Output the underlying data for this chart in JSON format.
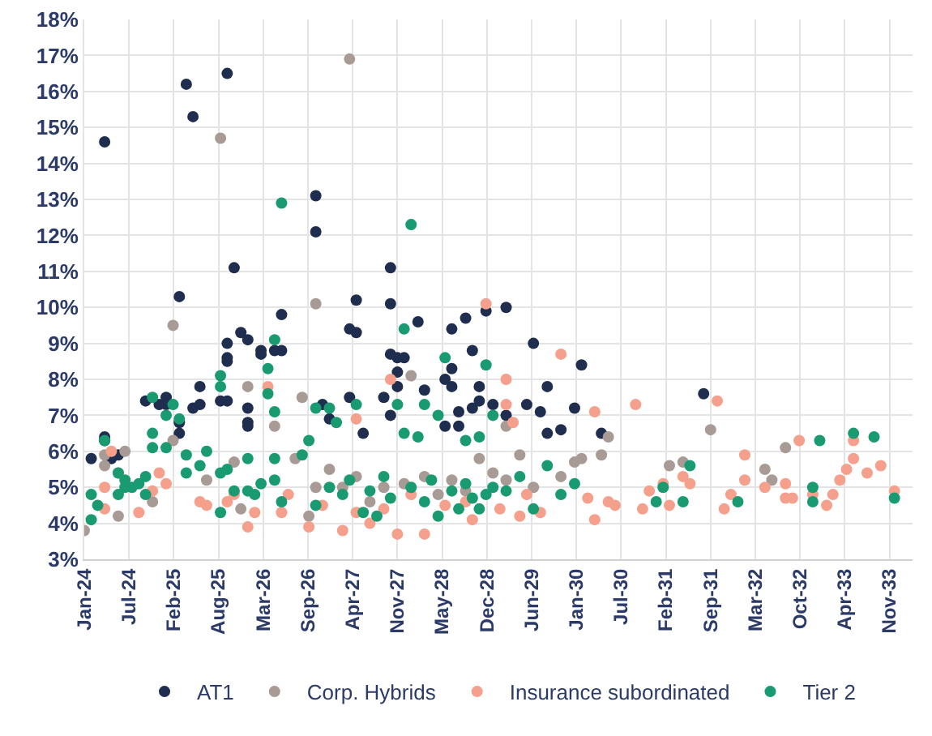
{
  "chart_data": {
    "type": "scatter",
    "marker": "circle",
    "grid": true,
    "legend": "bottom",
    "xlim": [
      "2024-01-01",
      "2034-02-20"
    ],
    "xticks": [
      {
        "value": "2024-01-01",
        "label": "Jan-24"
      },
      {
        "value": "2024-07-19",
        "label": "Jul-24"
      },
      {
        "value": "2025-02-04",
        "label": "Feb-25"
      },
      {
        "value": "2025-08-23",
        "label": "Aug-25"
      },
      {
        "value": "2026-03-11",
        "label": "Mar-26"
      },
      {
        "value": "2026-09-27",
        "label": "Sep-26"
      },
      {
        "value": "2027-04-15",
        "label": "Apr-27"
      },
      {
        "value": "2027-11-01",
        "label": "Nov-27"
      },
      {
        "value": "2028-05-19",
        "label": "May-28"
      },
      {
        "value": "2028-12-05",
        "label": "Dec-28"
      },
      {
        "value": "2029-06-23",
        "label": "Jun-29"
      },
      {
        "value": "2030-01-09",
        "label": "Jan-30"
      },
      {
        "value": "2030-07-28",
        "label": "Jul-30"
      },
      {
        "value": "2031-02-13",
        "label": "Feb-31"
      },
      {
        "value": "2031-09-01",
        "label": "Sep-31"
      },
      {
        "value": "2032-03-19",
        "label": "Mar-32"
      },
      {
        "value": "2032-10-05",
        "label": "Oct-32"
      },
      {
        "value": "2033-04-23",
        "label": "Apr-33"
      },
      {
        "value": "2033-11-09",
        "label": "Nov-33"
      }
    ],
    "ylim": [
      3,
      18
    ],
    "yticks": [
      {
        "value": 3,
        "label": "3%"
      },
      {
        "value": 4,
        "label": "4%"
      },
      {
        "value": 5,
        "label": "5%"
      },
      {
        "value": 6,
        "label": "6%"
      },
      {
        "value": 7,
        "label": "7%"
      },
      {
        "value": 8,
        "label": "8%"
      },
      {
        "value": 9,
        "label": "9%"
      },
      {
        "value": 10,
        "label": "10%"
      },
      {
        "value": 11,
        "label": "11%"
      },
      {
        "value": 12,
        "label": "12%"
      },
      {
        "value": 13,
        "label": "13%"
      },
      {
        "value": 14,
        "label": "14%"
      },
      {
        "value": 15,
        "label": "15%"
      },
      {
        "value": 16,
        "label": "16%"
      },
      {
        "value": 17,
        "label": "17%"
      },
      {
        "value": 18,
        "label": "18%"
      }
    ],
    "series": [
      {
        "name": "AT1",
        "color": "#1f2d4e",
        "x": [
          "2024-02",
          "2024-04",
          "2025-04",
          "2025-05",
          "2025-10",
          "2025-11",
          "2026-11",
          "2026-11",
          "2027-10",
          "2027-05",
          "2027-10",
          "2028-12",
          "2029-03",
          "2027-04",
          "2027-05",
          "2028-02",
          "2028-07",
          "2028-09",
          "2029-07",
          "2030-02",
          "2027-10",
          "2027-11",
          "2027-12",
          "2027-11",
          "2027-11",
          "2028-03",
          "2028-06",
          "2028-07",
          "2028-10",
          "2028-07",
          "2028-11",
          "2029-09",
          "2026-12",
          "2027-01",
          "2027-04",
          "2027-09",
          "2027-10",
          "2027-06",
          "2028-08",
          "2028-10",
          "2028-11",
          "2029-01",
          "2029-03",
          "2029-06",
          "2029-08",
          "2030-01",
          "2028-06",
          "2028-08",
          "2029-09",
          "2029-11",
          "2030-05",
          "2031-08",
          "2024-04",
          "2024-04",
          "2024-05",
          "2024-06",
          "2025-03",
          "2024-10",
          "2024-12",
          "2025-01",
          "2025-01",
          "2025-03",
          "2025-03",
          "2025-05",
          "2025-06",
          "2025-06",
          "2025-09",
          "2025-10",
          "2025-10",
          "2025-10",
          "2025-10",
          "2025-12",
          "2026-01",
          "2026-03",
          "2026-03",
          "2026-05",
          "2026-06",
          "2026-06",
          "2026-01",
          "2026-01",
          "2026-01"
        ],
        "values": [
          5.8,
          14.6,
          16.2,
          15.3,
          16.5,
          11.1,
          13.1,
          12.1,
          11.1,
          10.2,
          10.1,
          9.9,
          10.0,
          9.4,
          9.3,
          9.6,
          9.4,
          9.7,
          9.0,
          8.4,
          8.7,
          8.6,
          8.6,
          8.2,
          7.8,
          7.7,
          8.0,
          8.3,
          8.8,
          7.8,
          7.8,
          7.8,
          7.3,
          6.9,
          7.5,
          7.5,
          7.0,
          6.5,
          7.1,
          7.2,
          7.4,
          7.3,
          7.0,
          7.3,
          7.1,
          7.2,
          6.7,
          6.7,
          6.5,
          6.6,
          6.5,
          7.6,
          6.4,
          6.3,
          5.8,
          5.9,
          10.3,
          7.4,
          7.3,
          7.5,
          7.3,
          6.5,
          6.8,
          7.2,
          7.3,
          7.8,
          7.4,
          7.4,
          8.5,
          8.6,
          9.0,
          9.3,
          9.1,
          8.7,
          8.8,
          8.8,
          9.8,
          8.8,
          7.2,
          6.8,
          6.7
        ]
      },
      {
        "name": "Corp. Hybrids",
        "color": "#a89a94",
        "x": [
          "2025-09",
          "2027-04",
          "2026-11",
          "2025-02",
          "2024-01",
          "2024-04",
          "2024-07",
          "2024-04",
          "2024-06",
          "2025-02",
          "2026-01",
          "2026-05",
          "2025-11",
          "2025-12",
          "2026-09",
          "2026-08",
          "2026-10",
          "2026-11",
          "2024-11",
          "2025-07",
          "2028-01",
          "2029-03",
          "2030-06",
          "2030-05",
          "2030-02",
          "2029-05",
          "2028-11",
          "2030-01",
          "2029-07",
          "2029-03",
          "2031-09",
          "2031-03",
          "2031-05",
          "2032-05",
          "2032-06",
          "2032-08",
          "2027-01",
          "2027-03",
          "2027-05",
          "2027-07",
          "2027-09",
          "2027-12",
          "2028-03",
          "2028-05",
          "2028-07",
          "2028-09",
          "2029-01",
          "2029-11"
        ],
        "values": [
          14.7,
          16.9,
          10.1,
          9.5,
          3.8,
          5.9,
          6.0,
          5.6,
          4.2,
          6.3,
          7.8,
          6.7,
          5.7,
          4.4,
          7.5,
          5.8,
          4.2,
          5.0,
          4.6,
          5.2,
          8.1,
          6.7,
          6.4,
          5.9,
          5.8,
          5.9,
          5.8,
          5.7,
          5.0,
          5.2,
          6.6,
          5.6,
          5.7,
          5.5,
          5.2,
          6.1,
          5.5,
          5.0,
          5.3,
          4.6,
          5.0,
          5.1,
          5.3,
          4.8,
          5.2,
          4.9,
          5.4,
          5.3
        ]
      },
      {
        "name": "Insurance subordinated",
        "color": "#f4a08c",
        "x": [
          "2028-12",
          "2029-11",
          "2027-10",
          "2029-03",
          "2027-05",
          "2029-03",
          "2030-04",
          "2029-04",
          "2030-03",
          "2030-04",
          "2030-06",
          "2029-08",
          "2029-05",
          "2029-06",
          "2029-02",
          "2028-10",
          "2028-09",
          "2028-03",
          "2027-11",
          "2027-07",
          "2027-03",
          "2027-05",
          "2027-09",
          "2030-10",
          "2031-10",
          "2032-02",
          "2032-10",
          "2033-06",
          "2033-06",
          "2033-10",
          "2033-08",
          "2033-05",
          "2033-04",
          "2032-02",
          "2032-05",
          "2032-08",
          "2032-08",
          "2032-09",
          "2032-12",
          "2033-02",
          "2033-03",
          "2031-12",
          "2031-11",
          "2031-05",
          "2031-06",
          "2031-02",
          "2030-12",
          "2030-11",
          "2031-03",
          "2030-07",
          "2033-12",
          "2024-05",
          "2024-06",
          "2024-04",
          "2024-04",
          "2024-09",
          "2024-12",
          "2024-11",
          "2025-01",
          "2025-06",
          "2025-07",
          "2025-10",
          "2025-11",
          "2026-01",
          "2026-02",
          "2026-04",
          "2026-06",
          "2026-07",
          "2026-10",
          "2026-12",
          "2028-06",
          "2028-01"
        ],
        "values": [
          10.1,
          8.7,
          8.0,
          8.0,
          6.9,
          7.3,
          7.1,
          6.8,
          4.7,
          4.1,
          4.6,
          4.3,
          4.2,
          4.8,
          4.4,
          4.1,
          4.6,
          3.7,
          3.7,
          4.0,
          3.8,
          4.3,
          4.4,
          7.3,
          7.4,
          5.9,
          6.3,
          6.3,
          5.8,
          5.6,
          5.4,
          5.5,
          5.2,
          5.2,
          5.0,
          5.1,
          4.7,
          4.7,
          4.8,
          4.5,
          4.8,
          4.8,
          4.4,
          5.3,
          5.1,
          5.1,
          4.9,
          4.4,
          4.5,
          4.5,
          4.9,
          6.0,
          5.4,
          4.4,
          5.0,
          4.3,
          5.4,
          4.9,
          5.1,
          4.6,
          4.5,
          4.6,
          4.8,
          3.9,
          4.3,
          7.8,
          4.3,
          4.8,
          3.9,
          4.5,
          4.5,
          4.8
        ]
      },
      {
        "name": "Tier 2",
        "color": "#1a9a70",
        "x": [
          "2026-06",
          "2028-01",
          "2027-12",
          "2028-06",
          "2028-12",
          "2026-11",
          "2027-01",
          "2027-02",
          "2027-05",
          "2027-11",
          "2028-03",
          "2028-05",
          "2029-01",
          "2027-12",
          "2028-02",
          "2028-09",
          "2028-11",
          "2030-01",
          "2029-11",
          "2029-07",
          "2028-12",
          "2028-11",
          "2028-08",
          "2028-05",
          "2027-06",
          "2027-08",
          "2031-06",
          "2031-02",
          "2031-01",
          "2031-05",
          "2032-01",
          "2033-01",
          "2033-06",
          "2033-09",
          "2032-12",
          "2032-12",
          "2033-12",
          "2024-02",
          "2024-02",
          "2024-03",
          "2024-04",
          "2024-06",
          "2024-07",
          "2024-06",
          "2024-10",
          "2024-10",
          "2024-11",
          "2024-11",
          "2024-11",
          "2025-01",
          "2025-01",
          "2025-02",
          "2025-03",
          "2025-04",
          "2025-04",
          "2025-06",
          "2025-07",
          "2025-09",
          "2025-09",
          "2025-09",
          "2025-09",
          "2025-10",
          "2025-11",
          "2026-01",
          "2026-01",
          "2026-02",
          "2026-03",
          "2026-04",
          "2026-04",
          "2026-05",
          "2026-05",
          "2026-05",
          "2026-05",
          "2026-06",
          "2026-09",
          "2026-10",
          "2026-11",
          "2027-01",
          "2027-03",
          "2027-04",
          "2027-07",
          "2027-09",
          "2027-10",
          "2028-01",
          "2028-03",
          "2028-04",
          "2028-07",
          "2028-09",
          "2028-10",
          "2029-01",
          "2029-03",
          "2029-05",
          "2029-09",
          "2024-07",
          "2024-08",
          "2024-09"
        ],
        "values": [
          12.9,
          12.3,
          9.4,
          8.6,
          8.4,
          7.2,
          7.2,
          6.8,
          7.3,
          7.3,
          7.3,
          7.0,
          7.0,
          6.5,
          6.4,
          6.3,
          6.4,
          5.1,
          4.8,
          4.4,
          4.8,
          4.4,
          4.4,
          4.2,
          4.3,
          4.2,
          5.6,
          5.0,
          4.6,
          4.6,
          4.6,
          6.3,
          6.5,
          6.4,
          5.0,
          4.6,
          4.7,
          4.1,
          4.8,
          4.5,
          6.3,
          5.4,
          5.0,
          4.8,
          4.8,
          5.3,
          6.5,
          6.1,
          7.5,
          7.0,
          6.1,
          7.3,
          6.9,
          5.9,
          5.4,
          5.6,
          6.0,
          4.3,
          5.4,
          7.8,
          8.1,
          5.5,
          4.9,
          5.8,
          4.9,
          4.8,
          5.1,
          7.6,
          8.3,
          5.8,
          7.1,
          9.1,
          5.2,
          4.6,
          5.9,
          6.3,
          4.5,
          5.0,
          4.8,
          5.2,
          4.9,
          5.3,
          4.7,
          5.0,
          4.6,
          5.2,
          4.9,
          5.1,
          4.7,
          5.0,
          4.9,
          5.3,
          5.6,
          5.2,
          5.0,
          5.1
        ]
      }
    ]
  }
}
